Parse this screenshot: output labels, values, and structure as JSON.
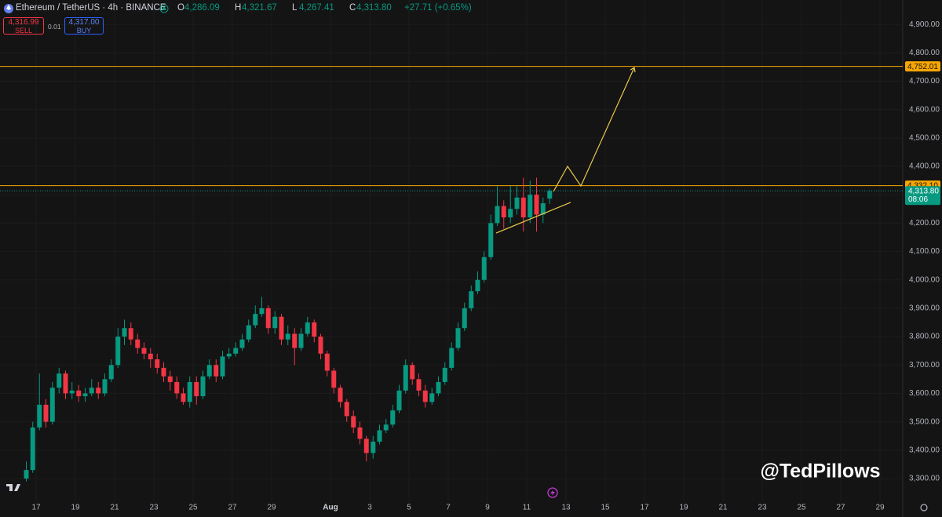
{
  "chart_data": {
    "type": "candlestick",
    "header": {
      "symbol": "Ethereum / TetherUS · 4h · BINANCE",
      "fields": [
        {
          "key": "O",
          "value": "4,286.09"
        },
        {
          "key": "H",
          "value": "4,321.67"
        },
        {
          "key": "L",
          "value": "4,267.41"
        },
        {
          "key": "C",
          "value": "4,313.80"
        }
      ],
      "change": "+27.71 (+0.65%)",
      "sell_price": "4,316.99",
      "sell_label": "SELL",
      "spread": "0.01",
      "buy_price": "4,317.00",
      "buy_label": "BUY"
    },
    "watermark": "@TedPillows",
    "up_color": "#089981",
    "down_color": "#f23645",
    "grid": true,
    "x": [
      16.5,
      16.83,
      17.17,
      17.5,
      17.83,
      18.17,
      18.5,
      18.83,
      19.17,
      19.5,
      19.83,
      20.17,
      20.5,
      20.83,
      21.17,
      21.5,
      21.83,
      22.17,
      22.5,
      22.83,
      23.17,
      23.5,
      23.83,
      24.17,
      24.5,
      24.83,
      25.17,
      25.5,
      25.83,
      26.17,
      26.5,
      26.83,
      27.17,
      27.5,
      27.83,
      28.17,
      28.5,
      28.83,
      29.17,
      29.5,
      29.83,
      30.17,
      30.5,
      30.83,
      31.17,
      31.5,
      31.83,
      32.17,
      32.5,
      32.83,
      33.17,
      33.5,
      33.83,
      34.17,
      34.5,
      34.83,
      35.17,
      35.5,
      35.83,
      36.17,
      36.5,
      36.83,
      37.17,
      37.5,
      37.83,
      38.17,
      38.5,
      38.83,
      39.17,
      39.5,
      39.83,
      40.17,
      40.5,
      40.83,
      41.17,
      41.5,
      41.83,
      42.17,
      42.5,
      42.83,
      43.17
    ],
    "open": [
      3300,
      3330,
      3480,
      3560,
      3500,
      3620,
      3670,
      3600,
      3610,
      3590,
      3600,
      3620,
      3600,
      3650,
      3700,
      3800,
      3830,
      3790,
      3760,
      3740,
      3720,
      3690,
      3660,
      3640,
      3600,
      3570,
      3640,
      3590,
      3660,
      3700,
      3660,
      3730,
      3740,
      3760,
      3790,
      3840,
      3880,
      3900,
      3830,
      3870,
      3790,
      3810,
      3760,
      3810,
      3850,
      3800,
      3740,
      3680,
      3620,
      3570,
      3520,
      3480,
      3440,
      3390,
      3430,
      3470,
      3490,
      3540,
      3610,
      3700,
      3650,
      3610,
      3570,
      3600,
      3640,
      3690,
      3760,
      3830,
      3900,
      3960,
      4000,
      4080,
      4200,
      4260,
      4220,
      4250,
      4290,
      4220,
      4300,
      4230,
      4286.09
    ],
    "high": [
      3360,
      3500,
      3670,
      3580,
      3640,
      3690,
      3680,
      3640,
      3630,
      3620,
      3650,
      3640,
      3670,
      3720,
      3830,
      3860,
      3850,
      3810,
      3780,
      3760,
      3740,
      3710,
      3680,
      3660,
      3620,
      3660,
      3660,
      3680,
      3720,
      3720,
      3750,
      3760,
      3780,
      3810,
      3860,
      3910,
      3940,
      3910,
      3890,
      3880,
      3840,
      3830,
      3830,
      3870,
      3860,
      3810,
      3750,
      3690,
      3630,
      3580,
      3540,
      3500,
      3450,
      3450,
      3490,
      3510,
      3560,
      3630,
      3720,
      3710,
      3670,
      3630,
      3620,
      3660,
      3710,
      3780,
      3850,
      3920,
      3980,
      4030,
      4100,
      4230,
      4330,
      4280,
      4330,
      4330,
      4360,
      4350,
      4360,
      4290,
      4321.67
    ],
    "low": [
      3290,
      3320,
      3470,
      3480,
      3490,
      3600,
      3580,
      3580,
      3570,
      3570,
      3590,
      3580,
      3590,
      3640,
      3690,
      3770,
      3770,
      3740,
      3720,
      3690,
      3670,
      3640,
      3610,
      3580,
      3560,
      3550,
      3560,
      3580,
      3650,
      3640,
      3650,
      3720,
      3730,
      3750,
      3780,
      3830,
      3870,
      3810,
      3810,
      3770,
      3770,
      3700,
      3750,
      3800,
      3780,
      3720,
      3660,
      3600,
      3550,
      3500,
      3460,
      3420,
      3360,
      3370,
      3420,
      3460,
      3480,
      3530,
      3600,
      3630,
      3590,
      3550,
      3560,
      3590,
      3630,
      3680,
      3750,
      3820,
      3890,
      3950,
      3990,
      4070,
      4190,
      4180,
      4200,
      4230,
      4170,
      4200,
      4170,
      4200,
      4267.41
    ],
    "close": [
      3330,
      3480,
      3560,
      3500,
      3620,
      3670,
      3600,
      3610,
      3590,
      3600,
      3620,
      3600,
      3650,
      3700,
      3800,
      3830,
      3790,
      3760,
      3740,
      3720,
      3690,
      3660,
      3640,
      3600,
      3570,
      3640,
      3590,
      3660,
      3700,
      3660,
      3730,
      3740,
      3760,
      3790,
      3840,
      3880,
      3900,
      3830,
      3870,
      3790,
      3810,
      3760,
      3810,
      3850,
      3800,
      3740,
      3680,
      3620,
      3570,
      3520,
      3480,
      3440,
      3390,
      3430,
      3470,
      3490,
      3540,
      3610,
      3700,
      3650,
      3610,
      3570,
      3600,
      3640,
      3690,
      3760,
      3830,
      3900,
      3960,
      4000,
      4080,
      4200,
      4260,
      4220,
      4250,
      4290,
      4220,
      4300,
      4230,
      4270,
      4313.8
    ],
    "xlim": [
      15.16,
      61.16
    ],
    "ylim": [
      3217,
      4986
    ],
    "xticks": [
      17,
      19,
      21,
      23,
      25,
      27,
      29,
      {
        "value": 32,
        "label": "Aug"
      },
      {
        "value": 34,
        "label": "3"
      },
      {
        "value": 36,
        "label": "5"
      },
      {
        "value": 38,
        "label": "7"
      },
      {
        "value": 40,
        "label": "9"
      },
      {
        "value": 42,
        "label": "11"
      },
      {
        "value": 44,
        "label": "13"
      },
      {
        "value": 46,
        "label": "15"
      },
      {
        "value": 48,
        "label": "17"
      },
      {
        "value": 50,
        "label": "19"
      },
      {
        "value": 52,
        "label": "21"
      },
      {
        "value": 54,
        "label": "23"
      },
      {
        "value": 56,
        "label": "25"
      },
      {
        "value": 58,
        "label": "27"
      },
      {
        "value": 60,
        "label": "29"
      }
    ],
    "yticks": [
      {
        "value": 3300,
        "label": "3,300.00"
      },
      {
        "value": 3400,
        "label": "3,400.00"
      },
      {
        "value": 3500,
        "label": "3,500.00"
      },
      {
        "value": 3600,
        "label": "3,600.00"
      },
      {
        "value": 3700,
        "label": "3,700.00"
      },
      {
        "value": 3800,
        "label": "3,800.00"
      },
      {
        "value": 3900,
        "label": "3,900.00"
      },
      {
        "value": 4000,
        "label": "4,000.00"
      },
      {
        "value": 4100,
        "label": "4,100.00"
      },
      {
        "value": 4200,
        "label": "4,200.00"
      },
      {
        "value": 4300,
        "label": "4,300.00"
      },
      {
        "value": 4400,
        "label": "4,400.00"
      },
      {
        "value": 4500,
        "label": "4,500.00"
      },
      {
        "value": 4600,
        "label": "4,600.00"
      },
      {
        "value": 4700,
        "label": "4,700.00"
      },
      {
        "value": 4800,
        "label": "4,800.00"
      },
      {
        "value": 4900,
        "label": "4,900.00"
      }
    ],
    "hlines": [
      {
        "value": 4752.01,
        "label": "4,752.01",
        "color": "#f7a600"
      },
      {
        "value": 4332.1,
        "label": "4,332.10",
        "color": "#f7a600"
      }
    ],
    "last_price": {
      "value": 4313.8,
      "label": "4,313.80",
      "countdown": "08:06"
    },
    "projection": {
      "color": "#e8c84a",
      "x": [
        43.36,
        44.08,
        44.76,
        47.48
      ],
      "y": [
        4311,
        4400,
        4331,
        4748
      ]
    },
    "trendline": {
      "color": "#e8c84a",
      "x": [
        40.44,
        44.24
      ],
      "y": [
        4165,
        4273
      ]
    }
  }
}
